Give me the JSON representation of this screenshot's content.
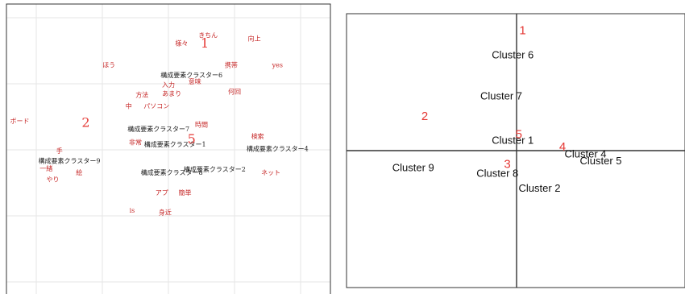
{
  "chart_data": [
    {
      "type": "scatter",
      "title": "",
      "xlabel": "",
      "ylabel": "",
      "grid": true,
      "cluster_numbers": [
        {
          "label": "1",
          "x": 0.55,
          "y": 1.55
        },
        {
          "label": "2",
          "x": -1.25,
          "y": 0.35
        },
        {
          "label": "5",
          "x": 0.35,
          "y": 0.1
        }
      ],
      "words": [
        {
          "text": "きちん",
          "x": 0.6,
          "y": 1.7
        },
        {
          "text": "向上",
          "x": 1.3,
          "y": 1.65
        },
        {
          "text": "様々",
          "x": 0.2,
          "y": 1.58
        },
        {
          "text": "ほう",
          "x": -0.9,
          "y": 1.25
        },
        {
          "text": "携帯",
          "x": 0.95,
          "y": 1.25
        },
        {
          "text": "yes",
          "x": 1.65,
          "y": 1.25
        },
        {
          "text": "構成要素クラスター6",
          "x": 0.35,
          "y": 1.1
        },
        {
          "text": "意味",
          "x": 0.4,
          "y": 1.0
        },
        {
          "text": "入力",
          "x": 0.0,
          "y": 0.95
        },
        {
          "text": "方法",
          "x": -0.4,
          "y": 0.8
        },
        {
          "text": "あまり",
          "x": 0.05,
          "y": 0.82
        },
        {
          "text": "何回",
          "x": 1.0,
          "y": 0.85
        },
        {
          "text": "中",
          "x": -0.6,
          "y": 0.63
        },
        {
          "text": "パソコン",
          "x": -0.18,
          "y": 0.63
        },
        {
          "text": "ボード",
          "x": -2.25,
          "y": 0.4
        },
        {
          "text": "時間",
          "x": 0.5,
          "y": 0.35
        },
        {
          "text": "構成要素クラスター7",
          "x": -0.15,
          "y": 0.28
        },
        {
          "text": "非常",
          "x": -0.5,
          "y": 0.08
        },
        {
          "text": "検索",
          "x": 1.35,
          "y": 0.17
        },
        {
          "text": "構成要素クラスター1",
          "x": 0.1,
          "y": 0.05
        },
        {
          "text": "構成要素クラスター4",
          "x": 1.65,
          "y": -0.02
        },
        {
          "text": "手",
          "x": -1.65,
          "y": -0.05
        },
        {
          "text": "構成要素クラスター9",
          "x": -1.5,
          "y": -0.2
        },
        {
          "text": "一緒",
          "x": -1.85,
          "y": -0.32
        },
        {
          "text": "絵",
          "x": -1.35,
          "y": -0.38
        },
        {
          "text": "やり",
          "x": -1.75,
          "y": -0.48
        },
        {
          "text": "構成要素クラスター8",
          "x": 0.05,
          "y": -0.38
        },
        {
          "text": "ネット",
          "x": 1.55,
          "y": -0.38
        },
        {
          "text": "構成要素クラスター2",
          "x": 0.7,
          "y": -0.33
        },
        {
          "text": "アプ",
          "x": -0.1,
          "y": -0.68
        },
        {
          "text": "簡単",
          "x": 0.25,
          "y": -0.68
        },
        {
          "text": "is",
          "x": -0.55,
          "y": -0.95
        },
        {
          "text": "身近",
          "x": -0.05,
          "y": -0.98
        }
      ]
    },
    {
      "type": "scatter",
      "title": "",
      "xlabel": "",
      "ylabel": "",
      "grid": false,
      "points": [
        {
          "label": "Cluster 6",
          "x": -0.05,
          "y": 1.35
        },
        {
          "label": "Cluster 7",
          "x": -0.2,
          "y": 0.75
        },
        {
          "label": "Cluster 1",
          "x": -0.05,
          "y": 0.1
        },
        {
          "label": "Cluster 4",
          "x": 0.9,
          "y": -0.1
        },
        {
          "label": "Cluster 5",
          "x": 1.1,
          "y": -0.2
        },
        {
          "label": "Cluster 9",
          "x": -1.35,
          "y": -0.3
        },
        {
          "label": "Cluster 8",
          "x": -0.25,
          "y": -0.38
        },
        {
          "label": "Cluster 2",
          "x": 0.3,
          "y": -0.6
        }
      ],
      "cluster_numbers": [
        {
          "label": "1",
          "x": 0.08,
          "y": 1.7
        },
        {
          "label": "2",
          "x": -1.2,
          "y": 0.45
        },
        {
          "label": "3",
          "x": -0.12,
          "y": -0.25
        },
        {
          "label": "4",
          "x": 0.6,
          "y": 0.0
        },
        {
          "label": "5",
          "x": 0.03,
          "y": 0.18
        }
      ]
    }
  ]
}
